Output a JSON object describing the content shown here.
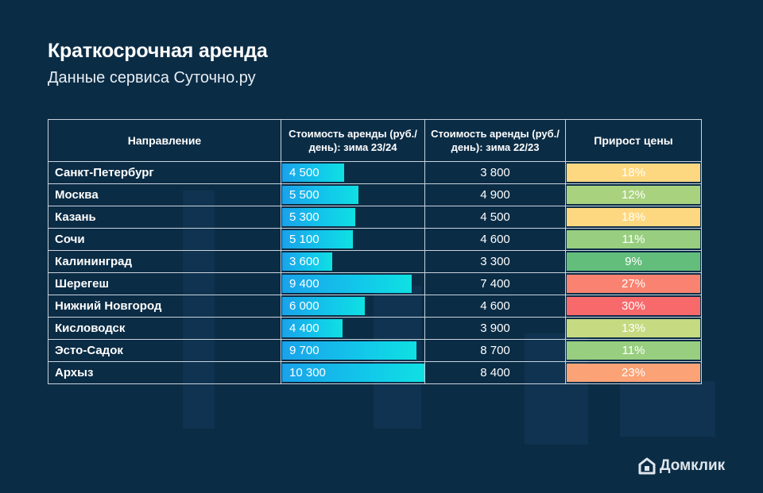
{
  "header": {
    "title": "Краткосрочная аренда",
    "subtitle": "Данные сервиса Суточно.ру"
  },
  "table": {
    "headers": {
      "direction": "Направление",
      "cost_current": "Стоимость аренды (руб./день): зима 23/24",
      "cost_previous": "Стоимость аренды (руб./день): зима 22/23",
      "growth": "Прирост цены"
    },
    "rows": [
      {
        "city": "Санкт-Петербург",
        "cur": "4 500",
        "prev": "3 800",
        "growth": "18%"
      },
      {
        "city": "Москва",
        "cur": "5 500",
        "prev": "4 900",
        "growth": "12%"
      },
      {
        "city": "Казань",
        "cur": "5 300",
        "prev": "4 500",
        "growth": "18%"
      },
      {
        "city": "Сочи",
        "cur": "5 100",
        "prev": "4 600",
        "growth": "11%"
      },
      {
        "city": "Калининград",
        "cur": "3 600",
        "prev": "3 300",
        "growth": "9%"
      },
      {
        "city": "Шерегеш",
        "cur": "9 400",
        "prev": "7 400",
        "growth": "27%"
      },
      {
        "city": "Нижний Новгород",
        "cur": "6 000",
        "prev": "4 600",
        "growth": "30%"
      },
      {
        "city": "Кисловодск",
        "cur": "4 400",
        "prev": "3 900",
        "growth": "13%"
      },
      {
        "city": "Эсто-Садок",
        "cur": "9 700",
        "prev": "8 700",
        "growth": "11%"
      },
      {
        "city": "Архыз",
        "cur": "10 300",
        "prev": "8 400",
        "growth": "23%"
      }
    ]
  },
  "chart_data": {
    "type": "table",
    "title": "Краткосрочная аренда",
    "subtitle": "Данные сервиса Суточно.ру",
    "columns": [
      "Направление",
      "Стоимость аренды (руб./день): зима 23/24",
      "Стоимость аренды (руб./день): зима 22/23",
      "Прирост цены"
    ],
    "categories": [
      "Санкт-Петербург",
      "Москва",
      "Казань",
      "Сочи",
      "Калининград",
      "Шерегеш",
      "Нижний Новгород",
      "Кисловодск",
      "Эсто-Садок",
      "Архыз"
    ],
    "series": [
      {
        "name": "Стоимость аренды (руб./день): зима 23/24",
        "values": [
          4500,
          5500,
          5300,
          5100,
          3600,
          9400,
          6000,
          4400,
          9700,
          10300
        ]
      },
      {
        "name": "Стоимость аренды (руб./день): зима 22/23",
        "values": [
          3800,
          4900,
          4500,
          4600,
          3300,
          7400,
          4600,
          3900,
          8700,
          8400
        ]
      },
      {
        "name": "Прирост цены",
        "values": [
          18,
          12,
          18,
          11,
          9,
          27,
          30,
          13,
          11,
          23
        ]
      }
    ],
    "bar_max": 10300,
    "growth_colors": {
      "9%": "#63be7b",
      "11%": "#98ce7f",
      "12%": "#a9d27f",
      "13%": "#c5da81",
      "18%": "#fed880",
      "23%": "#fba276",
      "27%": "#f98370",
      "30%": "#f8696b"
    }
  },
  "brand": {
    "name": "Домклик",
    "logo_icon": "house-logo-icon"
  }
}
